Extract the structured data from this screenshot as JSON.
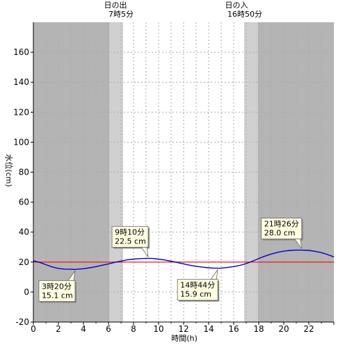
{
  "chart_data": {
    "type": "line",
    "xlabel": "時間(h)",
    "ylabel": "水位(cm)",
    "xlim": [
      0,
      24
    ],
    "ylim": [
      -20,
      180
    ],
    "x_ticks": [
      0,
      2,
      4,
      6,
      8,
      10,
      12,
      14,
      16,
      18,
      20,
      22
    ],
    "y_ticks": [
      -20,
      0,
      20,
      40,
      60,
      80,
      100,
      120,
      140,
      160
    ],
    "grid": true,
    "reference_line": {
      "value": 20,
      "color": "#ff0000"
    },
    "sunrise": {
      "hour": 7.167,
      "label_top": "日の出",
      "label_time": "7時5分"
    },
    "sunset": {
      "hour": 16.833,
      "label_top": "日の入",
      "label_time": "16時50分"
    },
    "series": [
      {
        "color": "#0000cc",
        "x": [
          0,
          0.5,
          1,
          1.5,
          2,
          2.5,
          3,
          3.33,
          3.5,
          4,
          4.5,
          5,
          5.5,
          6,
          6.5,
          7,
          7.5,
          8,
          8.5,
          9,
          9.17,
          9.5,
          10,
          10.5,
          11,
          11.5,
          12,
          12.5,
          13,
          13.5,
          14,
          14.5,
          14.73,
          15,
          15.5,
          16,
          16.5,
          17,
          17.5,
          18,
          18.5,
          19,
          19.5,
          20,
          20.5,
          21,
          21.43,
          22,
          22.5,
          23,
          23.5,
          24
        ],
        "y": [
          20.9,
          19.8,
          18.3,
          16.8,
          15.8,
          15.3,
          15.2,
          15.1,
          15.2,
          15.6,
          16.2,
          17.0,
          17.9,
          18.8,
          19.8,
          20.7,
          21.5,
          22.0,
          22.3,
          22.5,
          22.5,
          22.4,
          22.0,
          21.4,
          20.6,
          19.7,
          18.8,
          17.9,
          17.2,
          16.6,
          16.2,
          15.9,
          15.9,
          16.0,
          16.4,
          17.0,
          17.8,
          19.0,
          20.6,
          22.4,
          24.0,
          25.4,
          26.5,
          27.3,
          27.8,
          28.0,
          28.0,
          27.8,
          27.2,
          26.3,
          25.0,
          23.5
        ]
      }
    ],
    "annotations": [
      {
        "time": "3時20分",
        "value": "15.1 cm",
        "x": 3.33,
        "y": 15.1,
        "side": "below"
      },
      {
        "time": "9時10分",
        "value": "22.5 cm",
        "x": 9.17,
        "y": 22.5,
        "side": "above"
      },
      {
        "time": "14時44分",
        "value": "15.9 cm",
        "x": 14.73,
        "y": 15.9,
        "side": "below"
      },
      {
        "time": "21時26分",
        "value": "28.0 cm",
        "x": 21.43,
        "y": 28.0,
        "side": "above"
      }
    ],
    "colors": {
      "night": "#b4b4b4",
      "twilight": "#d0d0d0",
      "day": "#ffffff",
      "grid": "#aaaaaa",
      "annotation_bg": "#ffffe0"
    }
  }
}
